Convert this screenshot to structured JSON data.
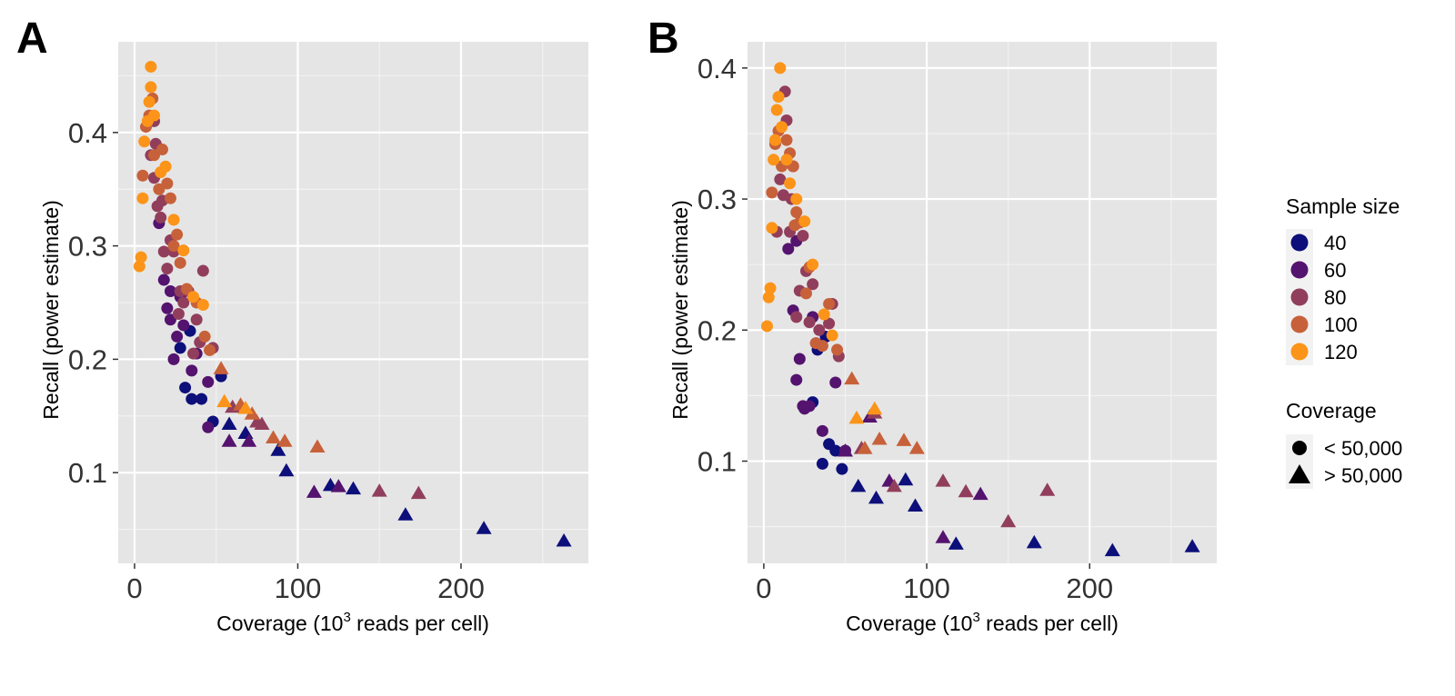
{
  "figure": {
    "legend": {
      "size_title": "Sample size",
      "coverage_title": "Coverage",
      "coverage_items": [
        {
          "label": "< 50,000",
          "shape": "circle"
        },
        {
          "label": "> 50,000",
          "shape": "triangle"
        }
      ]
    }
  },
  "colors": {
    "panel_bg": "#e5e5e5",
    "grid_major": "#ffffff",
    "grid_minor": "#f2f2f2",
    "size": {
      "40": "#0d0f7a",
      "60": "#54136e",
      "80": "#913e5c",
      "100": "#c7613a",
      "120": "#fb9419"
    }
  },
  "chart_data": [
    {
      "panel": "A",
      "type": "scatter",
      "xlabel": "Coverage (10^3 reads per cell)",
      "xlabel_parts": {
        "base": "Coverage (10",
        "sup": "3",
        "rest": " reads per cell)"
      },
      "ylabel": "Recall (power estimate)",
      "xlim": [
        -10,
        278
      ],
      "ylim": [
        0.02,
        0.48
      ],
      "xticks": [
        0,
        100,
        200
      ],
      "xtick_labels": [
        "0",
        "100",
        "200"
      ],
      "yticks": [
        0.1,
        0.2,
        0.3,
        0.4
      ],
      "ytick_labels": [
        "0.1",
        "0.2",
        "0.3",
        "0.4"
      ],
      "grid": true,
      "legend_position": "right",
      "series": [
        {
          "name": "40",
          "color": "#0d0f7a",
          "circles": [
            [
              35,
              0.165
            ],
            [
              41,
              0.165
            ],
            [
              48,
              0.145
            ],
            [
              53,
              0.185
            ],
            [
              34,
              0.225
            ],
            [
              28,
              0.21
            ],
            [
              31,
              0.175
            ]
          ],
          "triangles": [
            [
              58,
              0.143
            ],
            [
              68,
              0.135
            ],
            [
              88,
              0.12
            ],
            [
              93,
              0.102
            ],
            [
              120,
              0.089
            ],
            [
              134,
              0.086
            ],
            [
              166,
              0.063
            ],
            [
              214,
              0.051
            ],
            [
              263,
              0.04
            ]
          ]
        },
        {
          "name": "60",
          "color": "#54136e",
          "circles": [
            [
              18,
              0.27
            ],
            [
              20,
              0.245
            ],
            [
              22,
              0.235
            ],
            [
              24,
              0.2
            ],
            [
              26,
              0.22
            ],
            [
              30,
              0.23
            ],
            [
              35,
              0.19
            ],
            [
              38,
              0.205
            ],
            [
              45,
              0.14
            ],
            [
              22,
              0.26
            ],
            [
              28,
              0.255
            ],
            [
              15,
              0.32
            ],
            [
              45,
              0.18
            ]
          ],
          "triangles": [
            [
              58,
              0.128
            ],
            [
              70,
              0.128
            ],
            [
              110,
              0.083
            ],
            [
              125,
              0.088
            ]
          ]
        },
        {
          "name": "80",
          "color": "#913e5c",
          "circles": [
            [
              10,
              0.38
            ],
            [
              12,
              0.36
            ],
            [
              14,
              0.335
            ],
            [
              16,
              0.325
            ],
            [
              18,
              0.295
            ],
            [
              20,
              0.28
            ],
            [
              22,
              0.305
            ],
            [
              27,
              0.24
            ],
            [
              30,
              0.25
            ],
            [
              36,
              0.205
            ],
            [
              40,
              0.215
            ],
            [
              42,
              0.278
            ],
            [
              48,
              0.21
            ],
            [
              12,
              0.41
            ],
            [
              13,
              0.39
            ],
            [
              17,
              0.34
            ],
            [
              24,
              0.295
            ],
            [
              28,
              0.26
            ],
            [
              33,
              0.26
            ],
            [
              38,
              0.235
            ]
          ],
          "triangles": [
            [
              60,
              0.158
            ],
            [
              75,
              0.145
            ],
            [
              150,
              0.084
            ],
            [
              174,
              0.082
            ],
            [
              78,
              0.143
            ]
          ]
        },
        {
          "name": "100",
          "color": "#c7613a",
          "circles": [
            [
              5,
              0.362
            ],
            [
              7,
              0.405
            ],
            [
              9,
              0.415
            ],
            [
              12,
              0.38
            ],
            [
              15,
              0.35
            ],
            [
              17,
              0.385
            ],
            [
              20,
              0.355
            ],
            [
              22,
              0.342
            ],
            [
              26,
              0.31
            ],
            [
              28,
              0.285
            ],
            [
              32,
              0.262
            ],
            [
              38,
              0.25
            ],
            [
              43,
              0.22
            ],
            [
              46,
              0.208
            ],
            [
              11,
              0.43
            ],
            [
              24,
              0.3
            ]
          ],
          "triangles": [
            [
              53,
              0.192
            ],
            [
              65,
              0.16
            ],
            [
              72,
              0.152
            ],
            [
              85,
              0.131
            ],
            [
              92,
              0.128
            ],
            [
              112,
              0.123
            ]
          ]
        },
        {
          "name": "120",
          "color": "#fb9419",
          "circles": [
            [
              3,
              0.282
            ],
            [
              4,
              0.29
            ],
            [
              5,
              0.342
            ],
            [
              6,
              0.392
            ],
            [
              8,
              0.41
            ],
            [
              9,
              0.427
            ],
            [
              10,
              0.44
            ],
            [
              10,
              0.458
            ],
            [
              12,
              0.415
            ],
            [
              16,
              0.365
            ],
            [
              19,
              0.37
            ],
            [
              24,
              0.323
            ],
            [
              30,
              0.296
            ],
            [
              36,
              0.255
            ],
            [
              42,
              0.248
            ]
          ],
          "triangles": [
            [
              55,
              0.163
            ],
            [
              68,
              0.157
            ]
          ]
        }
      ]
    },
    {
      "panel": "B",
      "type": "scatter",
      "xlabel": "Coverage (10^3 reads per cell)",
      "xlabel_parts": {
        "base": "Coverage (10",
        "sup": "3",
        "rest": " reads per cell)"
      },
      "ylabel": "Recall (power estimate)",
      "xlim": [
        -10,
        278
      ],
      "ylim": [
        0.022,
        0.42
      ],
      "xticks": [
        0,
        100,
        200
      ],
      "xtick_labels": [
        "0",
        "100",
        "200"
      ],
      "yticks": [
        0.1,
        0.2,
        0.3,
        0.4
      ],
      "ytick_labels": [
        "0.1",
        "0.2",
        "0.3",
        "0.4"
      ],
      "grid": true,
      "legend_position": "right",
      "series": [
        {
          "name": "40",
          "color": "#0d0f7a",
          "circles": [
            [
              36,
              0.098
            ],
            [
              40,
              0.113
            ],
            [
              44,
              0.108
            ],
            [
              48,
              0.094
            ],
            [
              33,
              0.185
            ],
            [
              30,
              0.145
            ],
            [
              38,
              0.195
            ]
          ],
          "triangles": [
            [
              58,
              0.081
            ],
            [
              69,
              0.072
            ],
            [
              87,
              0.086
            ],
            [
              118,
              0.037
            ],
            [
              166,
              0.038
            ],
            [
              214,
              0.032
            ],
            [
              263,
              0.035
            ],
            [
              93,
              0.066
            ]
          ]
        },
        {
          "name": "60",
          "color": "#54136e",
          "circles": [
            [
              15,
              0.262
            ],
            [
              18,
              0.215
            ],
            [
              20,
              0.162
            ],
            [
              22,
              0.178
            ],
            [
              24,
              0.142
            ],
            [
              28,
              0.142
            ],
            [
              30,
              0.21
            ],
            [
              36,
              0.123
            ],
            [
              44,
              0.16
            ],
            [
              50,
              0.108
            ],
            [
              25,
              0.14
            ],
            [
              32,
              0.19
            ],
            [
              20,
              0.268
            ]
          ],
          "triangles": [
            [
              65,
              0.134
            ],
            [
              77,
              0.085
            ],
            [
              110,
              0.042
            ],
            [
              133,
              0.075
            ],
            [
              50,
              0.108
            ]
          ]
        },
        {
          "name": "80",
          "color": "#913e5c",
          "circles": [
            [
              8,
              0.275
            ],
            [
              10,
              0.315
            ],
            [
              12,
              0.303
            ],
            [
              14,
              0.36
            ],
            [
              16,
              0.275
            ],
            [
              18,
              0.325
            ],
            [
              20,
              0.21
            ],
            [
              22,
              0.23
            ],
            [
              26,
              0.245
            ],
            [
              28,
              0.206
            ],
            [
              30,
              0.235
            ],
            [
              34,
              0.2
            ],
            [
              40,
              0.205
            ],
            [
              42,
              0.22
            ],
            [
              46,
              0.18
            ],
            [
              13,
              0.382
            ],
            [
              17,
              0.3
            ],
            [
              24,
              0.272
            ]
          ],
          "triangles": [
            [
              60,
              0.11
            ],
            [
              68,
              0.137
            ],
            [
              80,
              0.081
            ],
            [
              110,
              0.085
            ],
            [
              124,
              0.077
            ],
            [
              150,
              0.054
            ],
            [
              174,
              0.078
            ]
          ]
        },
        {
          "name": "100",
          "color": "#c7613a",
          "circles": [
            [
              5,
              0.305
            ],
            [
              7,
              0.342
            ],
            [
              9,
              0.352
            ],
            [
              11,
              0.325
            ],
            [
              14,
              0.345
            ],
            [
              16,
              0.335
            ],
            [
              18,
              0.325
            ],
            [
              20,
              0.29
            ],
            [
              22,
              0.282
            ],
            [
              26,
              0.228
            ],
            [
              28,
              0.248
            ],
            [
              32,
              0.19
            ],
            [
              36,
              0.188
            ],
            [
              40,
              0.22
            ],
            [
              45,
              0.185
            ],
            [
              19,
              0.28
            ]
          ],
          "triangles": [
            [
              54,
              0.163
            ],
            [
              71,
              0.117
            ],
            [
              86,
              0.116
            ],
            [
              94,
              0.11
            ],
            [
              62,
              0.11
            ]
          ]
        },
        {
          "name": "120",
          "color": "#fb9419",
          "circles": [
            [
              2,
              0.203
            ],
            [
              3,
              0.225
            ],
            [
              4,
              0.232
            ],
            [
              5,
              0.278
            ],
            [
              6,
              0.33
            ],
            [
              7,
              0.345
            ],
            [
              8,
              0.368
            ],
            [
              9,
              0.378
            ],
            [
              10,
              0.4
            ],
            [
              11,
              0.355
            ],
            [
              14,
              0.33
            ],
            [
              16,
              0.312
            ],
            [
              20,
              0.3
            ],
            [
              25,
              0.283
            ],
            [
              30,
              0.25
            ],
            [
              37,
              0.212
            ],
            [
              42,
              0.196
            ]
          ],
          "triangles": [
            [
              57,
              0.133
            ],
            [
              68,
              0.14
            ]
          ]
        }
      ]
    }
  ]
}
